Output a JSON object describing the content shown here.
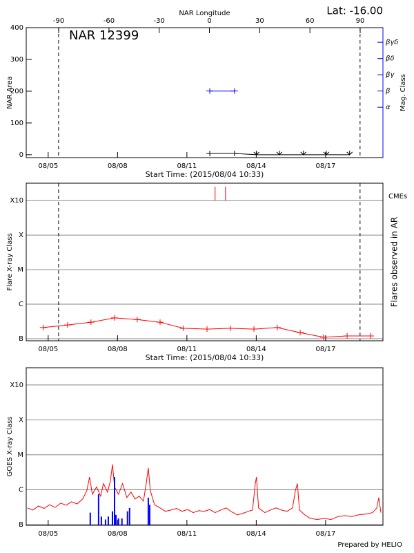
{
  "chart_data": [
    {
      "type": "line",
      "title": "NAR 12399",
      "annotation": "Lat: -16.00",
      "xlabel": "Start Time: (2015/08/04 10:33)",
      "ylabel": "NAR Area",
      "x2label": "NAR Longitude",
      "y2label": "Mag. Class",
      "y2_color": "#0000ff",
      "xlim": [
        0.05,
        15.48
      ],
      "xticks": [
        {
          "value": 1,
          "label": "08/05"
        },
        {
          "value": 4,
          "label": "08/08"
        },
        {
          "value": 7,
          "label": "08/11"
        },
        {
          "value": 10,
          "label": "08/14"
        },
        {
          "value": 13,
          "label": "08/17"
        }
      ],
      "x2lim": [
        -109.4,
        103.6
      ],
      "x2ticks": [
        -90,
        -60,
        -30,
        0,
        30,
        60,
        90
      ],
      "ylim": [
        -9,
        400
      ],
      "yticks": [
        0,
        100,
        200,
        300,
        400
      ],
      "y2lim": [
        -3.1,
        4.9
      ],
      "y2ticks": [
        {
          "value": 0,
          "label": "α"
        },
        {
          "value": 1,
          "label": "β"
        },
        {
          "value": 2,
          "label": "βγ"
        },
        {
          "value": 3,
          "label": "βδ"
        },
        {
          "value": 4,
          "label": "βγδ"
        }
      ],
      "limb_lines": [
        1.45,
        14.49
      ],
      "grid": false,
      "series": [
        {
          "color": "#000000",
          "x": [
            7.99,
            9.06,
            10.01,
            11.0,
            12.04,
            13.03,
            14.04
          ],
          "values": [
            4,
            4,
            0,
            0,
            0,
            0,
            0
          ]
        },
        {
          "color": "#0000ff",
          "axis": "y2",
          "x": [
            7.99,
            9.06
          ],
          "values": [
            1,
            1
          ]
        }
      ]
    },
    {
      "type": "line",
      "xlabel": "Start Time: (2015/08/04 10:33)",
      "ylabel": "Flare X-ray Class",
      "y2label": "Flares observed in AR",
      "xlim": [
        0.05,
        15.48
      ],
      "xticks": [
        {
          "value": 1,
          "label": "08/05"
        },
        {
          "value": 4,
          "label": "08/08"
        },
        {
          "value": 7,
          "label": "08/11"
        },
        {
          "value": 10,
          "label": "08/14"
        },
        {
          "value": 13,
          "label": "08/17"
        }
      ],
      "log": true,
      "ylim": [
        8.7e-08,
        0.0032
      ],
      "yticks": [
        {
          "value": 1e-07,
          "label": "B"
        },
        {
          "value": 1e-06,
          "label": "C"
        },
        {
          "value": 1e-05,
          "label": "M"
        },
        {
          "value": 0.0001,
          "label": "X"
        },
        {
          "value": 0.001,
          "label": "X10"
        }
      ],
      "grid": true,
      "limb_lines": [
        1.45,
        14.49
      ],
      "cmes": {
        "label": "CMEs",
        "color": "#ff0000",
        "x": [
          8.22,
          8.67
        ]
      },
      "series": [
        {
          "color": "#ff0000",
          "x": [
            0.79,
            1.84,
            2.85,
            3.87,
            4.85,
            5.84,
            6.85,
            7.87,
            8.88,
            9.9,
            10.91,
            11.9,
            12.91,
            13.93,
            14.94
          ],
          "values": [
            2.1e-07,
            2.5e-07,
            3e-07,
            4e-07,
            3.6e-07,
            3e-07,
            2e-07,
            1.9e-07,
            2e-07,
            1.9e-07,
            2.1e-07,
            1.5e-07,
            1.1e-07,
            1.2e-07,
            1.2e-07
          ]
        }
      ]
    },
    {
      "type": "line",
      "ylabel": "GOES X-ray Class",
      "xlim": [
        0.05,
        15.48
      ],
      "xticks": [
        {
          "value": 1,
          "label": "08/05"
        },
        {
          "value": 4,
          "label": "08/08"
        },
        {
          "value": 7,
          "label": "08/11"
        },
        {
          "value": 10,
          "label": "08/14"
        },
        {
          "value": 13,
          "label": "08/17"
        }
      ],
      "log": true,
      "ylim": [
        9.5e-08,
        0.0031
      ],
      "yticks": [
        {
          "value": 1e-07,
          "label": "B"
        },
        {
          "value": 1e-06,
          "label": "C"
        },
        {
          "value": 1e-05,
          "label": "M"
        },
        {
          "value": 0.0001,
          "label": "X"
        },
        {
          "value": 0.001,
          "label": "X10"
        }
      ],
      "grid": true,
      "series": [
        {
          "color": "#ff0000",
          "x": [
            0.1,
            0.34,
            0.58,
            0.82,
            1.06,
            1.3,
            1.54,
            1.78,
            2.01,
            2.25,
            2.49,
            2.67,
            2.79,
            2.91,
            3.09,
            3.27,
            3.39,
            3.57,
            3.69,
            3.78,
            3.87,
            4.04,
            4.22,
            4.4,
            4.58,
            4.76,
            4.94,
            5.12,
            5.24,
            5.33,
            5.42,
            5.6,
            5.84,
            6.07,
            6.31,
            6.55,
            6.79,
            7.03,
            7.27,
            7.51,
            7.75,
            7.99,
            8.22,
            8.46,
            8.7,
            8.94,
            9.18,
            9.42,
            9.66,
            9.84,
            9.96,
            10.01,
            10.1,
            10.37,
            10.61,
            10.85,
            11.09,
            11.33,
            11.57,
            11.69,
            11.78,
            11.87,
            12.1,
            12.34,
            12.64,
            12.94,
            13.24,
            13.54,
            13.84,
            14.13,
            14.43,
            14.73,
            15.03,
            15.21,
            15.3,
            15.39
          ],
          "values": [
            3e-07,
            2.6e-07,
            3.4e-07,
            2.9e-07,
            3.7e-07,
            3.1e-07,
            4.1e-07,
            3.6e-07,
            4.5e-07,
            3.9e-07,
            5.4e-07,
            9.3e-07,
            2.3e-06,
            7.4e-07,
            1.2e-06,
            6.5e-07,
            1.5e-06,
            8.5e-07,
            1.8e-06,
            5.3e-06,
            1.2e-06,
            7.4e-07,
            1.5e-06,
            5.9e-07,
            8.5e-07,
            5.4e-07,
            6.5e-07,
            4.7e-07,
            1.5e-06,
            4.2e-06,
            9.3e-07,
            3.7e-07,
            3e-07,
            2.4e-07,
            2.6e-07,
            2.9e-07,
            2.4e-07,
            2.7e-07,
            2.2e-07,
            2.5e-07,
            2.4e-07,
            2.7e-07,
            2.2e-07,
            2.6e-07,
            3e-07,
            2.3e-07,
            1.9e-07,
            2.1e-07,
            2.4e-07,
            2.6e-07,
            1.5e-06,
            2.3e-06,
            3e-07,
            2.2e-07,
            2.6e-07,
            3e-07,
            2.6e-07,
            2.4e-07,
            3e-07,
            9.3e-07,
            1.5e-06,
            2.6e-07,
            1.9e-07,
            1.5e-07,
            1.4e-07,
            1.5e-07,
            1.4e-07,
            1.7e-07,
            1.8e-07,
            1.7e-07,
            1.9e-07,
            2e-07,
            2.2e-07,
            3e-07,
            5.9e-07,
            2.2e-07
          ]
        },
        {
          "type": "bar",
          "color": "#0000ff",
          "x": [
            2.82,
            3.18,
            3.3,
            3.48,
            3.6,
            3.78,
            3.87,
            3.93,
            4.04,
            4.19,
            4.43,
            4.52,
            5.33,
            5.39
          ],
          "values": [
            2.2e-07,
            7.4e-07,
            1.7e-07,
            1.4e-07,
            1.7e-07,
            2.4e-07,
            2.3e-06,
            1.9e-07,
            1.5e-07,
            1.5e-07,
            2.4e-07,
            3e-07,
            5.9e-07,
            3.7e-07
          ]
        }
      ]
    }
  ],
  "footer": "Prepared by HELIO"
}
